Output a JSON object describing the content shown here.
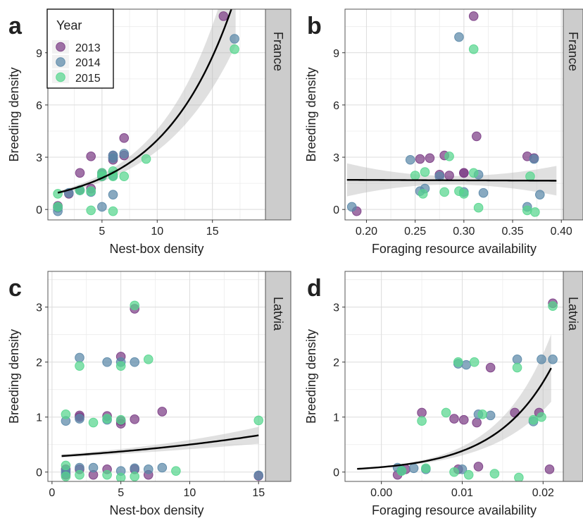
{
  "legend": {
    "title": "Year",
    "entries": [
      {
        "label": "2013",
        "color": "#7b3d85"
      },
      {
        "label": "2014",
        "color": "#5a88a8"
      },
      {
        "label": "2015",
        "color": "#56d68e"
      }
    ]
  },
  "chart_data": [
    {
      "panel": "a",
      "strip": "France",
      "type": "scatter",
      "xlabel": "Nest-box density",
      "ylabel": "Breeding density",
      "xlim": [
        0.1,
        19.8
      ],
      "ylim": [
        -0.6,
        11.5
      ],
      "xticks": [
        5,
        10,
        15
      ],
      "yticks": [
        0,
        3,
        6,
        9
      ],
      "fit": {
        "type": "exp",
        "a": 0.82,
        "b": 0.158,
        "band": 0.1,
        "x_start": 1,
        "x_end": 17.1
      },
      "series": [
        {
          "name": "2013",
          "x": [
            1,
            1,
            2,
            3,
            3,
            4,
            4,
            5,
            5,
            6,
            6,
            6,
            7,
            7,
            16
          ],
          "y": [
            0.1,
            0.2,
            0.9,
            1.1,
            2.1,
            1.2,
            3.05,
            2.1,
            1.9,
            2.95,
            3.1,
            2.85,
            4.1,
            3.1,
            11.1
          ]
        },
        {
          "name": "2014",
          "x": [
            1,
            1,
            2,
            3,
            4,
            5,
            5,
            6,
            6,
            6,
            6,
            7,
            17
          ],
          "y": [
            -0.1,
            0.1,
            0.95,
            1.1,
            1.0,
            0.15,
            2.0,
            2.95,
            3.1,
            1.95,
            0.85,
            3.2,
            9.8
          ]
        },
        {
          "name": "2015",
          "x": [
            1,
            1,
            3,
            4,
            4,
            5,
            5,
            6,
            6,
            6,
            7,
            9,
            17
          ],
          "y": [
            0.9,
            0.15,
            1.1,
            -0.05,
            1.05,
            1.9,
            2.1,
            2.2,
            1.9,
            -0.1,
            1.9,
            2.9,
            9.2
          ]
        }
      ]
    },
    {
      "panel": "b",
      "strip": "France",
      "type": "scatter",
      "xlabel": "Foraging resource availability",
      "ylabel": "Breeding density",
      "xlim": [
        0.178,
        0.402
      ],
      "ylim": [
        -0.6,
        11.5
      ],
      "xticks": [
        0.2,
        0.25,
        0.3,
        0.35,
        0.4
      ],
      "xticklabels": [
        "0.20",
        "0.25",
        "0.30",
        "0.35",
        "0.40"
      ],
      "yticks": [
        0,
        3,
        6,
        9
      ],
      "fit": {
        "type": "linear",
        "y0": 1.7,
        "y1": 1.65,
        "band0": 0.95,
        "bandmid": 0.25,
        "band1": 0.85,
        "x_start": 0.18,
        "x_end": 0.395
      },
      "series": [
        {
          "name": "2013",
          "x": [
            0.19,
            0.255,
            0.265,
            0.275,
            0.28,
            0.285,
            0.3,
            0.3,
            0.31,
            0.313,
            0.365,
            0.372
          ],
          "y": [
            -0.1,
            2.9,
            2.95,
            2.0,
            3.1,
            1.95,
            2.1,
            2.1,
            11.1,
            4.2,
            3.05,
            2.95
          ]
        },
        {
          "name": "2014",
          "x": [
            0.185,
            0.245,
            0.255,
            0.26,
            0.275,
            0.295,
            0.3,
            0.315,
            0.32,
            0.365,
            0.372,
            0.378
          ],
          "y": [
            0.15,
            2.85,
            1.05,
            1.2,
            1.9,
            9.9,
            1.0,
            2.0,
            0.95,
            0.15,
            2.9,
            0.85
          ]
        },
        {
          "name": "2015",
          "x": [
            0.25,
            0.258,
            0.26,
            0.28,
            0.285,
            0.295,
            0.3,
            0.31,
            0.31,
            0.315,
            0.365,
            0.368,
            0.373
          ],
          "y": [
            1.95,
            0.9,
            2.15,
            1.0,
            3.05,
            1.05,
            0.9,
            9.2,
            2.1,
            0.1,
            -0.05,
            1.9,
            -0.15
          ]
        }
      ]
    },
    {
      "panel": "c",
      "strip": "Latvia",
      "type": "scatter",
      "xlabel": "Nest-box density",
      "ylabel": "Breeding density",
      "xlim": [
        -0.3,
        15.5
      ],
      "ylim": [
        -0.17,
        3.65
      ],
      "xticks": [
        0,
        5,
        10,
        15
      ],
      "yticks": [
        0,
        1,
        2,
        3
      ],
      "fit": {
        "type": "exp",
        "a": 0.28,
        "b": 0.058,
        "band": 0.1,
        "x_start": 0.7,
        "x_end": 15
      },
      "series": [
        {
          "name": "2013",
          "x": [
            1,
            1,
            2,
            2,
            2,
            3,
            4,
            4,
            5,
            5,
            5,
            6,
            6,
            6,
            7,
            8,
            15
          ],
          "y": [
            -0.05,
            0.05,
            1.0,
            1.03,
            0.05,
            -0.05,
            1.02,
            0.05,
            0.93,
            0.88,
            2.1,
            0.96,
            2.97,
            0.05,
            -0.05,
            1.1,
            -0.07
          ]
        },
        {
          "name": "2014",
          "x": [
            1,
            1,
            1,
            2,
            2,
            2,
            3,
            4,
            4,
            5,
            5,
            6,
            6,
            7,
            8,
            15
          ],
          "y": [
            0.02,
            0.93,
            -0.02,
            2.08,
            0.97,
            0.08,
            0.08,
            2.0,
            0.95,
            2.0,
            0.02,
            2.0,
            0.07,
            0.05,
            0.08,
            -0.06
          ]
        },
        {
          "name": "2015",
          "x": [
            1,
            1,
            1,
            2,
            2,
            3,
            4,
            4,
            5,
            5,
            5,
            6,
            6,
            7,
            9,
            15
          ],
          "y": [
            1.05,
            0.12,
            -0.08,
            1.93,
            -0.05,
            0.9,
            0.97,
            -0.05,
            -0.1,
            1.93,
            0.95,
            3.03,
            -0.08,
            2.05,
            0.02,
            0.94
          ]
        }
      ]
    },
    {
      "panel": "d",
      "strip": "Latvia",
      "type": "scatter",
      "xlabel": "Foraging resource availability",
      "ylabel": "Breeding density",
      "xlim": [
        -0.0045,
        0.0225
      ],
      "ylim": [
        -0.17,
        3.65
      ],
      "xticks": [
        0,
        0.01,
        0.02
      ],
      "xticklabels": [
        "0.00",
        "0.01",
        "0.02"
      ],
      "yticks": [
        0,
        1,
        2,
        3
      ],
      "fit": {
        "type": "exp",
        "a": 0.09,
        "b": 145,
        "band_frac": 0.18,
        "x_start": -0.003,
        "x_end": 0.021
      },
      "series": [
        {
          "name": "2013",
          "x": [
            0.002,
            0.003,
            0.005,
            0.009,
            0.0095,
            0.0102,
            0.0118,
            0.012,
            0.0135,
            0.0165,
            0.0195,
            0.0208,
            0.0212
          ],
          "y": [
            -0.05,
            0.05,
            1.08,
            0.97,
            0.05,
            0.95,
            0.9,
            0.1,
            1.9,
            1.08,
            1.08,
            0.05,
            3.07
          ]
        },
        {
          "name": "2014",
          "x": [
            0.002,
            0.0025,
            0.004,
            0.0055,
            0.0095,
            0.01,
            0.0105,
            0.012,
            0.0135,
            0.0168,
            0.0188,
            0.0198,
            0.0212
          ],
          "y": [
            0.08,
            0.03,
            0.07,
            0.05,
            1.97,
            0.05,
            1.95,
            1.05,
            1.03,
            2.05,
            0.92,
            2.05,
            2.05
          ]
        },
        {
          "name": "2015",
          "x": [
            0.0025,
            0.005,
            0.0055,
            0.008,
            0.009,
            0.0095,
            0.0108,
            0.0115,
            0.0125,
            0.014,
            0.0168,
            0.017,
            0.0188,
            0.0198,
            0.0212
          ],
          "y": [
            0.02,
            0.93,
            0.07,
            1.08,
            0.0,
            2.0,
            -0.05,
            2.0,
            1.05,
            -0.03,
            1.9,
            -0.1,
            0.95,
            1.0,
            3.02
          ]
        }
      ]
    }
  ]
}
